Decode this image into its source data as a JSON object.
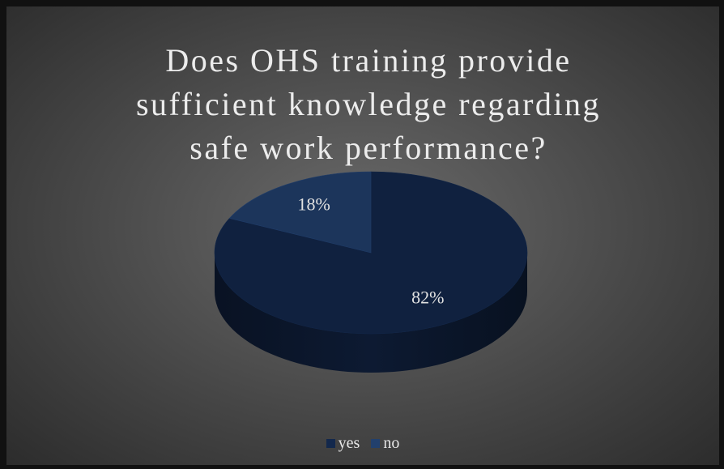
{
  "chart_data": {
    "type": "pie",
    "title": "Does OHS training provide sufficient knowledge regarding safe work performance?",
    "categories": [
      "yes",
      "no"
    ],
    "values": [
      82,
      18
    ],
    "value_labels": [
      "82%",
      "18%"
    ],
    "colors": [
      "#10213f",
      "#1c355b"
    ],
    "legend": "bottom"
  }
}
